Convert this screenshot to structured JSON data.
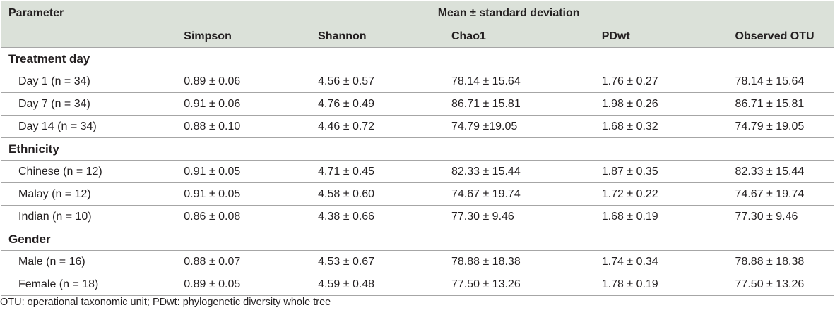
{
  "header": {
    "parameter": "Parameter",
    "group": "Mean ± standard deviation",
    "columns": [
      "Simpson",
      "Shannon",
      "Chao1",
      "PDwt",
      "Observed OTU"
    ]
  },
  "sections": [
    {
      "title": "Treatment day",
      "rows": [
        {
          "label": "Day 1 (n = 34)",
          "values": [
            "0.89 ± 0.06",
            "4.56 ± 0.57",
            "78.14 ± 15.64",
            "1.76 ± 0.27",
            "78.14 ± 15.64"
          ]
        },
        {
          "label": "Day 7 (n = 34)",
          "values": [
            "0.91 ± 0.06",
            "4.76 ± 0.49",
            "86.71 ± 15.81",
            "1.98 ± 0.26",
            "86.71 ± 15.81"
          ]
        },
        {
          "label": "Day 14 (n = 34)",
          "values": [
            "0.88 ± 0.10",
            "4.46 ± 0.72",
            "74.79 ±19.05",
            "1.68 ± 0.32",
            "74.79 ± 19.05"
          ]
        }
      ]
    },
    {
      "title": "Ethnicity",
      "rows": [
        {
          "label": "Chinese (n = 12)",
          "values": [
            "0.91 ± 0.05",
            "4.71 ± 0.45",
            "82.33 ± 15.44",
            "1.87 ± 0.35",
            "82.33 ± 15.44"
          ]
        },
        {
          "label": "Malay (n = 12)",
          "values": [
            "0.91 ± 0.05",
            "4.58 ± 0.60",
            "74.67 ± 19.74",
            "1.72 ± 0.22",
            "74.67 ± 19.74"
          ]
        },
        {
          "label": "Indian (n = 10)",
          "values": [
            "0.86 ± 0.08",
            "4.38 ± 0.66",
            "77.30 ± 9.46",
            "1.68 ± 0.19",
            "77.30 ± 9.46"
          ]
        }
      ]
    },
    {
      "title": "Gender",
      "rows": [
        {
          "label": "Male (n = 16)",
          "values": [
            "0.88 ± 0.07",
            "4.53 ± 0.67",
            "78.88 ± 18.38",
            "1.74 ± 0.34",
            "78.88 ± 18.38"
          ]
        },
        {
          "label": "Female (n = 18)",
          "values": [
            "0.89 ± 0.05",
            "4.59 ± 0.48",
            "77.50 ± 13.26",
            "1.78 ± 0.19",
            "77.50 ± 13.26"
          ]
        }
      ]
    }
  ],
  "footnote": "OTU: operational taxonomic unit; PDwt: phylogenetic diversity whole tree"
}
